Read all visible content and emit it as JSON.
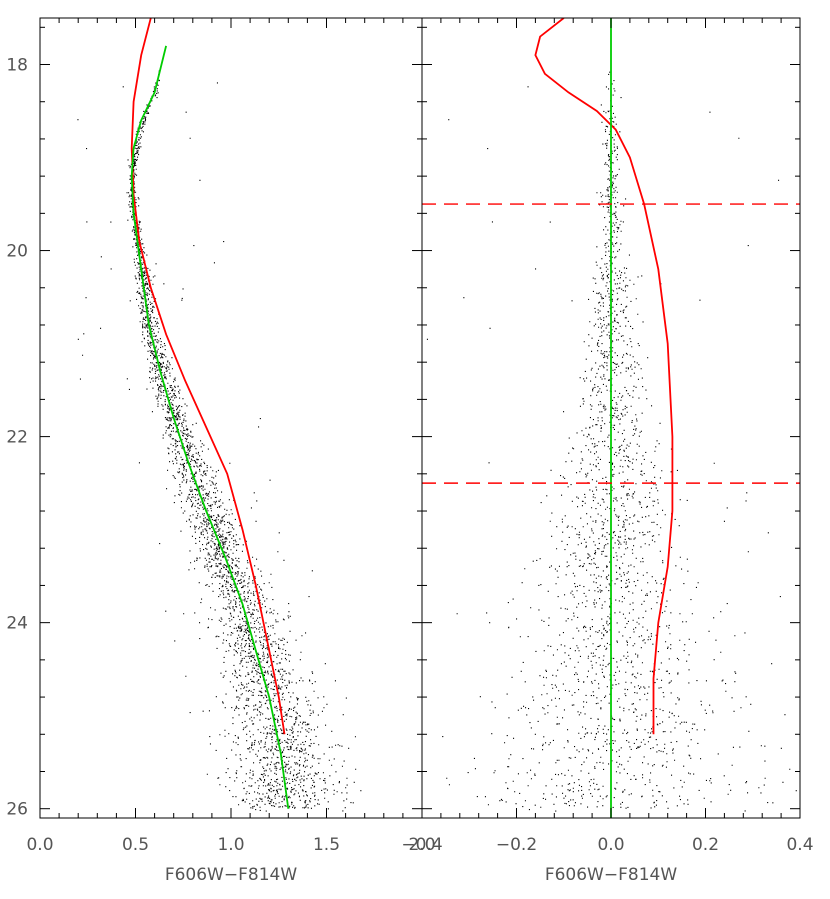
{
  "chart_data": [
    {
      "type": "scatter",
      "panel": "left",
      "xlabel": "F606W−F814W",
      "ylabel": "",
      "xlim": [
        0.0,
        2.0
      ],
      "ylim": [
        26.1,
        17.5
      ],
      "y_inverted": true,
      "x_ticks": [
        0.0,
        0.5,
        1.0,
        1.5,
        2.0
      ],
      "x_tick_labels": [
        "0.0",
        "0.5",
        "1.0",
        "1.5",
        "2.0"
      ],
      "y_ticks": [
        18,
        20,
        22,
        24,
        26
      ],
      "y_tick_labels": [
        "18",
        "20",
        "22",
        "24",
        "26"
      ],
      "grid": false,
      "series": [
        {
          "kind": "points",
          "color": "#000000",
          "ridge": {
            "x": [
              0.66,
              0.6,
              0.52,
              0.48,
              0.49,
              0.53,
              0.57,
              0.63,
              0.7,
              0.78,
              0.87,
              0.97,
              1.06,
              1.13,
              1.2,
              1.26,
              1.3
            ],
            "y": [
              17.8,
              18.3,
              18.7,
              19.2,
              19.6,
              20.2,
              20.8,
              21.3,
              21.8,
              22.3,
              22.8,
              23.3,
              23.8,
              24.3,
              24.8,
              25.4,
              26.0
            ]
          }
        },
        {
          "kind": "line",
          "color": "#ff0000",
          "x": [
            0.58,
            0.53,
            0.49,
            0.48,
            0.49,
            0.52,
            0.58,
            0.66,
            0.76,
            0.87,
            0.98,
            1.06,
            1.13,
            1.19,
            1.25,
            1.28
          ],
          "y": [
            17.5,
            17.9,
            18.4,
            18.9,
            19.4,
            19.9,
            20.4,
            20.9,
            21.4,
            21.9,
            22.4,
            23.0,
            23.6,
            24.2,
            24.8,
            25.2
          ]
        },
        {
          "kind": "line",
          "color": "#00cc00",
          "x": [
            0.66,
            0.6,
            0.53,
            0.49,
            0.48,
            0.49,
            0.53,
            0.57,
            0.63,
            0.7,
            0.78,
            0.87,
            0.97,
            1.06,
            1.13,
            1.2,
            1.26,
            1.3
          ],
          "y": [
            17.8,
            18.3,
            18.6,
            18.9,
            19.2,
            19.6,
            20.2,
            20.8,
            21.3,
            21.8,
            22.3,
            22.8,
            23.3,
            23.8,
            24.3,
            24.8,
            25.4,
            26.0
          ]
        }
      ]
    },
    {
      "type": "scatter",
      "panel": "right",
      "xlabel": "F606W−F814W",
      "ylabel": "",
      "xlim": [
        -0.4,
        0.4
      ],
      "ylim": [
        26.1,
        17.5
      ],
      "y_inverted": true,
      "x_ticks": [
        -0.4,
        -0.2,
        0.0,
        0.2,
        0.4
      ],
      "x_tick_labels": [
        "−0.4",
        "−0.2",
        "0.0",
        "0.2",
        "0.4"
      ],
      "y_ticks": [
        18,
        20,
        22,
        24,
        26
      ],
      "grid": false,
      "series": [
        {
          "kind": "points",
          "color": "#000000",
          "center_x": 0.0
        },
        {
          "kind": "line",
          "color": "#ff0000",
          "x": [
            -0.1,
            -0.15,
            -0.16,
            -0.14,
            -0.09,
            -0.03,
            0.01,
            0.04,
            0.07,
            0.1,
            0.12,
            0.13,
            0.13,
            0.12,
            0.1,
            0.09,
            0.09,
            0.09
          ],
          "y": [
            17.5,
            17.7,
            17.9,
            18.1,
            18.3,
            18.5,
            18.7,
            19.0,
            19.5,
            20.2,
            21.0,
            22.0,
            22.8,
            23.4,
            24.0,
            24.6,
            25.0,
            25.2
          ]
        },
        {
          "kind": "line",
          "color": "#00cc00",
          "x": [
            0.0,
            0.0
          ],
          "y": [
            17.5,
            26.1
          ]
        },
        {
          "kind": "hline",
          "color": "#ff0000",
          "dashed": true,
          "y": 19.5
        },
        {
          "kind": "hline",
          "color": "#ff0000",
          "dashed": true,
          "y": 22.5
        }
      ]
    }
  ]
}
